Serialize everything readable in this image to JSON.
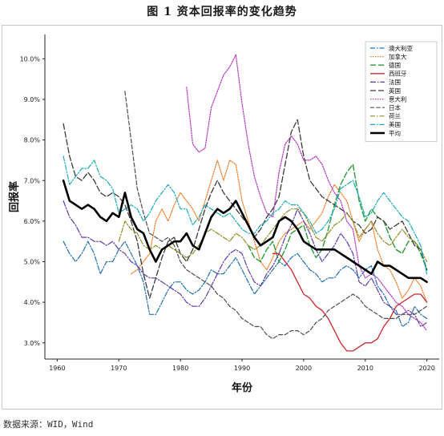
{
  "figure": {
    "title": "图 1  资本回报率的变化趋势",
    "source": "数据来源：WID，Wind"
  },
  "chart_data": {
    "type": "line",
    "xlabel": "年份",
    "ylabel": "回报率",
    "xlim": [
      1958,
      2022
    ],
    "ylim": [
      2.6,
      10.6
    ],
    "xticks": [
      1960,
      1970,
      1980,
      1990,
      2000,
      2010,
      2020
    ],
    "yticks": [
      3.0,
      4.0,
      5.0,
      6.0,
      7.0,
      8.0,
      9.0,
      10.0
    ],
    "ytick_labels": [
      "3.0%",
      "4.0%",
      "5.0%",
      "6.0%",
      "7.0%",
      "8.0%",
      "9.0%",
      "10.0%"
    ],
    "grid": false,
    "legend_position": "top-right",
    "series": [
      {
        "name": "澳大利亚",
        "color": "#1f6fb4",
        "dash": "6,2,1.5,2",
        "width": 1.2,
        "x": [
          1961,
          1962,
          1963,
          1964,
          1965,
          1966,
          1967,
          1968,
          1969,
          1970,
          1971,
          1972,
          1973,
          1974,
          1975,
          1976,
          1977,
          1978,
          1979,
          1980,
          1981,
          1982,
          1983,
          1984,
          1985,
          1986,
          1987,
          1988,
          1989,
          1990,
          1991,
          1992,
          1993,
          1994,
          1995,
          1996,
          1997,
          1998,
          1999,
          2000,
          2001,
          2002,
          2003,
          2004,
          2005,
          2006,
          2007,
          2008,
          2009,
          2010,
          2011,
          2012,
          2013,
          2014,
          2015,
          2016,
          2017,
          2018,
          2019,
          2020
        ],
        "y": [
          5.5,
          5.2,
          5.0,
          5.2,
          5.5,
          5.2,
          4.7,
          5.0,
          5.0,
          5.3,
          5.5,
          5.2,
          4.9,
          4.5,
          3.7,
          3.7,
          4.0,
          4.3,
          4.5,
          4.5,
          4.3,
          4.2,
          4.3,
          4.5,
          4.8,
          4.7,
          4.7,
          4.9,
          5.1,
          4.8,
          4.5,
          4.2,
          4.4,
          4.6,
          4.8,
          5.0,
          4.9,
          5.1,
          5.2,
          5.0,
          4.8,
          4.7,
          4.5,
          4.6,
          4.6,
          4.8,
          4.9,
          4.8,
          4.6,
          4.8,
          4.9,
          4.4,
          4.2,
          3.9,
          3.8,
          3.4,
          3.5,
          3.9,
          3.7,
          3.6
        ]
      },
      {
        "name": "加拿大",
        "color": "#f07a24",
        "dash": "1.5,1.5",
        "width": 1.2,
        "x": [
          1972,
          1973,
          1974,
          1975,
          1976,
          1977,
          1978,
          1979,
          1980,
          1981,
          1982,
          1983,
          1984,
          1985,
          1986,
          1987,
          1988,
          1989,
          1990,
          1991,
          1992,
          1993,
          1994,
          1995,
          1996,
          1997,
          1998,
          1999,
          2000,
          2001,
          2002,
          2003,
          2004,
          2005,
          2006,
          2007,
          2008,
          2009,
          2010,
          2011,
          2012,
          2013,
          2014,
          2015,
          2016,
          2017,
          2018,
          2019,
          2020
        ],
        "y": [
          4.7,
          4.8,
          5.0,
          5.2,
          6.0,
          6.3,
          6.0,
          6.4,
          6.7,
          6.5,
          6.3,
          6.0,
          6.5,
          7.0,
          7.5,
          7.0,
          7.5,
          7.4,
          6.5,
          6.0,
          5.5,
          5.0,
          4.8,
          5.1,
          5.5,
          5.7,
          5.8,
          5.9,
          6.0,
          5.8,
          6.0,
          6.2,
          6.6,
          6.9,
          6.7,
          6.5,
          6.0,
          5.5,
          5.8,
          6.0,
          5.3,
          4.9,
          4.8,
          4.5,
          4.1,
          4.3,
          4.6,
          4.4,
          4.0
        ]
      },
      {
        "name": "德国",
        "color": "#2a9a3a",
        "dash": "7,3",
        "width": 1.4,
        "x": [
          1991,
          1992,
          1993,
          1994,
          1995,
          1996,
          1997,
          1998,
          1999,
          2000,
          2001,
          2002,
          2003,
          2004,
          2005,
          2006,
          2007,
          2008,
          2009,
          2010,
          2011,
          2012,
          2013,
          2014,
          2015,
          2016,
          2017,
          2018,
          2019,
          2020
        ],
        "y": [
          5.4,
          5.1,
          5.0,
          5.3,
          5.5,
          5.0,
          5.3,
          5.7,
          5.8,
          5.9,
          5.4,
          5.1,
          5.3,
          5.8,
          6.4,
          6.9,
          7.2,
          7.4,
          6.5,
          6.0,
          6.3,
          6.1,
          6.0,
          5.6,
          5.3,
          5.2,
          5.5,
          5.5,
          5.2,
          4.8
        ]
      },
      {
        "name": "西班牙",
        "color": "#c8272d",
        "dash": "",
        "width": 1.3,
        "x": [
          1995,
          1996,
          1997,
          1998,
          1999,
          2000,
          2001,
          2002,
          2003,
          2004,
          2005,
          2006,
          2007,
          2008,
          2009,
          2010,
          2011,
          2012,
          2013,
          2014,
          2015,
          2016,
          2017,
          2018,
          2019,
          2020
        ],
        "y": [
          5.2,
          5.2,
          5.0,
          4.8,
          4.5,
          4.2,
          4.1,
          3.9,
          3.8,
          3.6,
          3.3,
          3.0,
          2.8,
          2.8,
          2.9,
          3.0,
          3.0,
          3.1,
          3.4,
          3.6,
          3.9,
          4.0,
          4.1,
          4.2,
          4.2,
          4.0
        ]
      },
      {
        "name": "法国",
        "color": "#5b3aa8",
        "dash": "7,2,1.5,2",
        "width": 1.2,
        "x": [
          1961,
          1962,
          1963,
          1964,
          1965,
          1966,
          1967,
          1968,
          1969,
          1970,
          1971,
          1972,
          1973,
          1974,
          1975,
          1976,
          1977,
          1978,
          1979,
          1980,
          1981,
          1982,
          1983,
          1984,
          1985,
          1986,
          1987,
          1988,
          1989,
          1990,
          1991,
          1992,
          1993,
          1994,
          1995,
          1996,
          1997,
          1998,
          1999,
          2000,
          2001,
          2002,
          2003,
          2004,
          2005,
          2006,
          2007,
          2008,
          2009,
          2010,
          2011,
          2012,
          2013,
          2014,
          2015,
          2016,
          2017,
          2018,
          2019,
          2020
        ],
        "y": [
          6.5,
          6.1,
          5.9,
          5.6,
          5.6,
          5.5,
          5.5,
          5.4,
          5.5,
          5.3,
          5.2,
          5.0,
          4.9,
          4.7,
          4.6,
          4.6,
          4.5,
          4.4,
          4.3,
          4.2,
          4.0,
          3.9,
          3.9,
          4.1,
          4.4,
          4.7,
          5.0,
          5.2,
          5.3,
          5.2,
          4.8,
          4.5,
          4.4,
          4.7,
          4.9,
          5.2,
          5.6,
          5.9,
          6.3,
          6.0,
          5.7,
          5.3,
          5.0,
          5.2,
          5.4,
          5.7,
          5.5,
          5.2,
          4.5,
          4.4,
          4.6,
          4.3,
          4.0,
          3.9,
          3.7,
          3.7,
          3.8,
          3.7,
          3.4,
          3.5
        ]
      },
      {
        "name": "英国",
        "color": "#3a3a3a",
        "dash": "7,3",
        "width": 1.3,
        "x": [
          1961,
          1962,
          1963,
          1964,
          1965,
          1966,
          1967,
          1968,
          1969,
          1970,
          1971,
          1972,
          1973,
          1974,
          1975,
          1976,
          1977,
          1978,
          1979,
          1980,
          1981,
          1982,
          1983,
          1984,
          1985,
          1986,
          1987,
          1988,
          1989,
          1990,
          1991,
          1992,
          1993,
          1994,
          1995,
          1996,
          1997,
          1998,
          1999,
          2000,
          2001,
          2002,
          2003,
          2004,
          2005,
          2006,
          2007,
          2008,
          2009,
          2010,
          2011,
          2012,
          2013,
          2014,
          2015,
          2016,
          2017,
          2018,
          2019,
          2020
        ],
        "y": [
          8.4,
          7.6,
          7.1,
          7.0,
          7.2,
          7.0,
          6.7,
          6.6,
          6.7,
          6.6,
          6.4,
          6.0,
          5.5,
          4.7,
          4.1,
          4.6,
          5.1,
          5.5,
          5.6,
          5.2,
          5.0,
          5.3,
          5.8,
          6.3,
          6.7,
          7.0,
          6.7,
          6.5,
          6.3,
          6.1,
          5.9,
          5.6,
          5.8,
          6.1,
          6.3,
          6.6,
          7.4,
          8.2,
          8.5,
          7.6,
          7.0,
          6.8,
          6.6,
          6.5,
          6.4,
          6.3,
          6.2,
          6.0,
          5.9,
          5.7,
          5.8,
          6.1,
          6.0,
          5.8,
          5.9,
          6.0,
          5.7,
          5.4,
          5.3,
          4.8
        ]
      },
      {
        "name": "意大利",
        "color": "#b533c4",
        "dash": "1.5,1.5",
        "width": 1.2,
        "x": [
          1981,
          1982,
          1983,
          1984,
          1985,
          1986,
          1987,
          1988,
          1989,
          1990,
          1991,
          1992,
          1993,
          1994,
          1995,
          1996,
          1997,
          1998,
          1999,
          2000,
          2001,
          2002,
          2003,
          2004,
          2005,
          2006,
          2007,
          2008,
          2009,
          2010,
          2011,
          2012,
          2013,
          2014,
          2015,
          2016,
          2017,
          2018,
          2019,
          2020
        ],
        "y": [
          9.3,
          7.9,
          7.7,
          7.8,
          8.8,
          9.2,
          9.6,
          9.8,
          10.1,
          8.9,
          7.9,
          7.1,
          6.6,
          6.2,
          6.1,
          7.2,
          7.9,
          8.1,
          7.9,
          7.5,
          7.5,
          7.6,
          7.4,
          7.0,
          6.7,
          6.5,
          6.0,
          5.8,
          4.9,
          4.6,
          4.7,
          4.6,
          4.4,
          4.2,
          4.0,
          3.9,
          3.7,
          3.6,
          3.5,
          3.3
        ]
      },
      {
        "name": "日本",
        "color": "#4d4d4d",
        "dash": "5,2.5",
        "width": 1.2,
        "x": [
          1971,
          1972,
          1973,
          1974,
          1975,
          1976,
          1977,
          1978,
          1979,
          1980,
          1981,
          1982,
          1983,
          1984,
          1985,
          1986,
          1987,
          1988,
          1989,
          1990,
          1991,
          1992,
          1993,
          1994,
          1995,
          1996,
          1997,
          1998,
          1999,
          2000,
          2001,
          2002,
          2003,
          2004,
          2005,
          2006,
          2007,
          2008,
          2009,
          2010,
          2011,
          2012,
          2013,
          2014,
          2015,
          2016,
          2017,
          2018,
          2019,
          2020
        ],
        "y": [
          9.2,
          8.0,
          6.8,
          6.2,
          5.7,
          5.6,
          5.5,
          5.6,
          5.4,
          5.0,
          4.8,
          4.7,
          4.6,
          4.5,
          4.4,
          4.2,
          4.1,
          3.9,
          3.8,
          3.6,
          3.5,
          3.4,
          3.4,
          3.2,
          3.1,
          3.2,
          3.2,
          3.3,
          3.3,
          3.2,
          3.3,
          3.5,
          3.6,
          3.8,
          3.9,
          4.0,
          4.1,
          4.2,
          4.1,
          3.9,
          3.8,
          3.7,
          3.6,
          3.6,
          3.6,
          3.7,
          3.7,
          3.7,
          3.8,
          3.9
        ]
      },
      {
        "name": "荷兰",
        "color": "#8c8c22",
        "dash": "6,2,1.5,2",
        "width": 1.2,
        "x": [
          1970,
          1971,
          1972,
          1973,
          1974,
          1975,
          1976,
          1977,
          1978,
          1979,
          1980,
          1981,
          1982,
          1983,
          1984,
          1985,
          1986,
          1987,
          1988,
          1989,
          1990,
          1991,
          1992,
          1993,
          1994,
          1995,
          1996,
          1997,
          1998,
          1999,
          2000,
          2001,
          2002,
          2003,
          2004,
          2005,
          2006,
          2007,
          2008,
          2009,
          2010,
          2011,
          2012,
          2013,
          2014,
          2015,
          2016,
          2017,
          2018,
          2019,
          2020
        ],
        "y": [
          5.5,
          6.0,
          5.8,
          5.7,
          5.4,
          5.3,
          5.4,
          5.3,
          5.4,
          5.3,
          5.2,
          5.1,
          5.2,
          5.4,
          5.7,
          5.8,
          5.7,
          5.6,
          5.5,
          5.7,
          5.6,
          5.4,
          5.3,
          5.4,
          5.6,
          5.8,
          6.0,
          6.2,
          6.3,
          6.3,
          6.2,
          5.9,
          5.6,
          5.5,
          5.7,
          5.9,
          6.0,
          6.2,
          6.0,
          5.6,
          5.8,
          6.0,
          5.7,
          5.5,
          5.4,
          5.6,
          5.8,
          5.6,
          5.5,
          5.3,
          5.0
        ]
      },
      {
        "name": "美国",
        "color": "#1aa9bd",
        "dash": "6,2,1.5,2",
        "width": 1.2,
        "x": [
          1961,
          1962,
          1963,
          1964,
          1965,
          1966,
          1967,
          1968,
          1969,
          1970,
          1971,
          1972,
          1973,
          1974,
          1975,
          1976,
          1977,
          1978,
          1979,
          1980,
          1981,
          1982,
          1983,
          1984,
          1985,
          1986,
          1987,
          1988,
          1989,
          1990,
          1991,
          1992,
          1993,
          1994,
          1995,
          1996,
          1997,
          1998,
          1999,
          2000,
          2001,
          2002,
          2003,
          2004,
          2005,
          2006,
          2007,
          2008,
          2009,
          2010,
          2011,
          2012,
          2013,
          2014,
          2015,
          2016,
          2017,
          2018,
          2019,
          2020
        ],
        "y": [
          7.6,
          6.9,
          7.1,
          7.3,
          7.3,
          7.5,
          7.1,
          7.0,
          6.8,
          6.2,
          6.3,
          6.4,
          6.3,
          6.0,
          6.2,
          6.5,
          6.7,
          6.9,
          6.7,
          6.3,
          6.3,
          5.9,
          6.1,
          6.4,
          6.3,
          6.2,
          6.1,
          6.2,
          6.0,
          5.8,
          5.7,
          5.7,
          5.9,
          6.0,
          6.2,
          6.3,
          6.5,
          6.4,
          6.4,
          6.2,
          6.0,
          5.7,
          5.8,
          6.0,
          6.3,
          6.8,
          6.9,
          7.0,
          6.6,
          6.1,
          6.2,
          6.5,
          6.7,
          6.5,
          6.3,
          6.1,
          6.0,
          5.7,
          5.4,
          4.7
        ]
      },
      {
        "name": "平均",
        "color": "#000000",
        "dash": "",
        "width": 2.6,
        "x": [
          1961,
          1962,
          1963,
          1964,
          1965,
          1966,
          1967,
          1968,
          1969,
          1970,
          1971,
          1972,
          1973,
          1974,
          1975,
          1976,
          1977,
          1978,
          1979,
          1980,
          1981,
          1982,
          1983,
          1984,
          1985,
          1986,
          1987,
          1988,
          1989,
          1990,
          1991,
          1992,
          1993,
          1994,
          1995,
          1996,
          1997,
          1998,
          1999,
          2000,
          2001,
          2002,
          2003,
          2004,
          2005,
          2006,
          2007,
          2008,
          2009,
          2010,
          2011,
          2012,
          2013,
          2014,
          2015,
          2016,
          2017,
          2018,
          2019,
          2020
        ],
        "y": [
          7.0,
          6.5,
          6.4,
          6.3,
          6.4,
          6.3,
          6.1,
          6.0,
          6.2,
          6.1,
          6.7,
          6.1,
          5.8,
          5.7,
          5.3,
          5.0,
          5.3,
          5.4,
          5.5,
          5.5,
          5.7,
          5.4,
          5.3,
          5.7,
          6.1,
          6.3,
          6.2,
          6.3,
          6.5,
          6.2,
          5.9,
          5.6,
          5.4,
          5.5,
          5.6,
          6.0,
          6.1,
          6.0,
          5.8,
          5.5,
          5.4,
          5.3,
          5.3,
          5.3,
          5.3,
          5.2,
          5.1,
          5.0,
          4.9,
          4.8,
          4.7,
          5.0,
          4.9,
          4.9,
          4.8,
          4.7,
          4.6,
          4.6,
          4.6,
          4.5
        ]
      }
    ]
  }
}
